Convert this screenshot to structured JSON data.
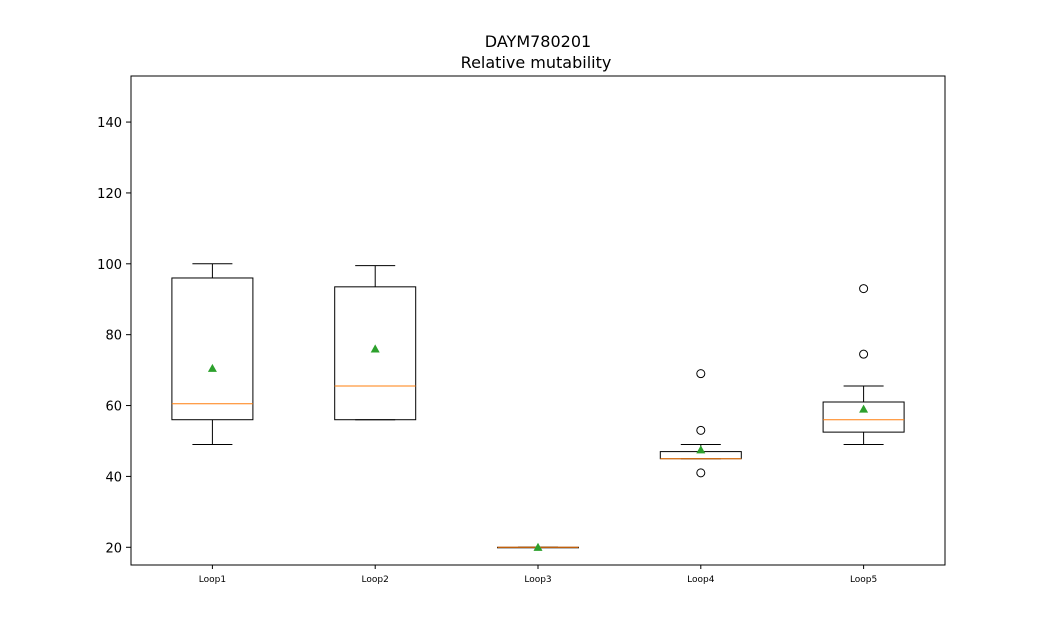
{
  "chart_data": {
    "type": "box",
    "title": "DAYM780201",
    "subtitle": "Relative mutability",
    "xlabel": "",
    "ylabel": "",
    "ylim": [
      15,
      153
    ],
    "yticks": [
      20,
      40,
      60,
      80,
      100,
      120,
      140
    ],
    "grid": false,
    "colors": {
      "median": "#ff7f0e",
      "mean": "#2ca02c",
      "box": "#000000"
    },
    "categories": [
      "Loop1",
      "Loop2",
      "Loop3",
      "Loop4",
      "Loop5"
    ],
    "boxes": [
      {
        "category": "Loop1",
        "whisker_low": 49,
        "q1": 56,
        "median": 60.5,
        "q3": 96,
        "whisker_high": 100,
        "mean": 70.5,
        "outliers": []
      },
      {
        "category": "Loop2",
        "whisker_low": 56,
        "q1": 56,
        "median": 65.5,
        "q3": 93.5,
        "whisker_high": 99.5,
        "mean": 76,
        "outliers": []
      },
      {
        "category": "Loop3",
        "whisker_low": 20,
        "q1": 20,
        "median": 20,
        "q3": 20,
        "whisker_high": 20,
        "mean": 20,
        "outliers": []
      },
      {
        "category": "Loop4",
        "whisker_low": 45,
        "q1": 45,
        "median": 45,
        "q3": 47,
        "whisker_high": 49,
        "mean": 47.5,
        "outliers": [
          41,
          53,
          69
        ]
      },
      {
        "category": "Loop5",
        "whisker_low": 49,
        "q1": 52.5,
        "median": 56,
        "q3": 61,
        "whisker_high": 65.5,
        "mean": 59,
        "outliers": [
          74.5,
          93
        ]
      }
    ]
  }
}
